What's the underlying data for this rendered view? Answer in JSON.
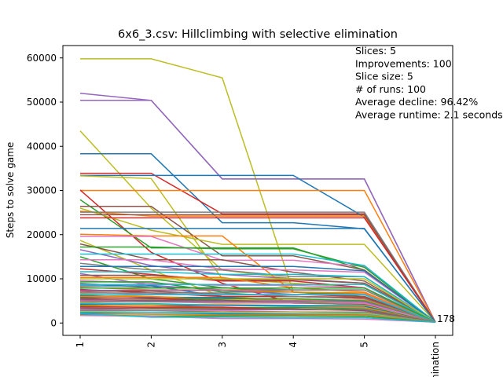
{
  "chart_data": {
    "type": "line",
    "title": "6x6_3.csv: Hillclimbing with selective elimination",
    "xlabel": "",
    "ylabel": "Steps to solve game",
    "categories": [
      "1",
      "2",
      "3",
      "4",
      "5",
      "Elimination"
    ],
    "ylim": [
      -2800,
      62800
    ],
    "yticks": [
      0,
      10000,
      20000,
      30000,
      40000,
      50000,
      60000
    ],
    "grid": false,
    "annotation_lines": [
      "Slices: 5",
      "Improvements: 100",
      "Slice size: 5",
      "# of runs: 100",
      "Average decline: 96.42%",
      "Average runtime: 2.1 seconds"
    ],
    "end_label": "178",
    "series": [
      {
        "values": [
          59800,
          59800,
          55500,
          7000,
          6000,
          178
        ],
        "color": "#bcbd22"
      },
      {
        "values": [
          52000,
          50400,
          32600,
          32600,
          32600,
          178
        ],
        "color": "#9467bd"
      },
      {
        "values": [
          50400,
          50400,
          32600,
          32600,
          32600,
          178
        ],
        "color": "#9467bd"
      },
      {
        "values": [
          43500,
          26000,
          12000,
          10000,
          9000,
          178
        ],
        "color": "#bcbd22"
      },
      {
        "values": [
          38300,
          38300,
          22700,
          22700,
          21300,
          178
        ],
        "color": "#1f77b4"
      },
      {
        "values": [
          33900,
          33900,
          24700,
          24700,
          24700,
          178
        ],
        "color": "#d62728"
      },
      {
        "values": [
          33400,
          33400,
          33400,
          33400,
          24000,
          178
        ],
        "color": "#1f77b4"
      },
      {
        "values": [
          33300,
          32700,
          10000,
          9000,
          8000,
          178
        ],
        "color": "#bcbd22"
      },
      {
        "values": [
          30000,
          30000,
          30000,
          30000,
          30000,
          178
        ],
        "color": "#ff7f0e"
      },
      {
        "values": [
          30100,
          16000,
          9000,
          4500,
          4500,
          178
        ],
        "color": "#d62728"
      },
      {
        "values": [
          27900,
          17000,
          17000,
          17000,
          12000,
          178
        ],
        "color": "#2ca02c"
      },
      {
        "values": [
          26400,
          26400,
          15200,
          15200,
          12000,
          178
        ],
        "color": "#8c564b"
      },
      {
        "values": [
          26000,
          21000,
          17800,
          17800,
          17800,
          178
        ],
        "color": "#bcbd22"
      },
      {
        "values": [
          25300,
          24200,
          24200,
          24200,
          24200,
          178
        ],
        "color": "#ff7f0e"
      },
      {
        "values": [
          25100,
          25100,
          25100,
          25100,
          25100,
          178
        ],
        "color": "#7f7f7f"
      },
      {
        "values": [
          24500,
          24500,
          24500,
          24500,
          24500,
          178
        ],
        "color": "#8c564b"
      },
      {
        "values": [
          23800,
          23800,
          23800,
          23800,
          23800,
          178
        ],
        "color": "#d62728"
      },
      {
        "values": [
          21400,
          21400,
          21400,
          21400,
          21400,
          178
        ],
        "color": "#1f77b4"
      },
      {
        "values": [
          20100,
          19700,
          19700,
          7000,
          6500,
          178
        ],
        "color": "#ff7f0e"
      },
      {
        "values": [
          19600,
          19600,
          14200,
          14200,
          12800,
          178
        ],
        "color": "#e377c2"
      },
      {
        "values": [
          18700,
          12000,
          6000,
          5000,
          4500,
          178
        ],
        "color": "#bcbd22"
      },
      {
        "values": [
          17900,
          14300,
          14300,
          11500,
          9500,
          178
        ],
        "color": "#8c564b"
      },
      {
        "values": [
          17200,
          17200,
          16800,
          16800,
          12600,
          178
        ],
        "color": "#2ca02c"
      },
      {
        "values": [
          16600,
          13000,
          11000,
          10000,
          9000,
          178
        ],
        "color": "#9467bd"
      },
      {
        "values": [
          15600,
          15600,
          15600,
          15600,
          13000,
          178
        ],
        "color": "#17becf"
      },
      {
        "values": [
          15000,
          10000,
          8000,
          7000,
          6000,
          178
        ],
        "color": "#2ca02c"
      },
      {
        "values": [
          14300,
          14300,
          12200,
          12000,
          11500,
          178
        ],
        "color": "#e377c2"
      },
      {
        "values": [
          13500,
          12000,
          12000,
          10500,
          10500,
          178
        ],
        "color": "#7f7f7f"
      },
      {
        "values": [
          12800,
          12800,
          12800,
          12800,
          11800,
          178
        ],
        "color": "#1f77b4"
      },
      {
        "values": [
          12300,
          11000,
          9500,
          9500,
          8000,
          178
        ],
        "color": "#d62728"
      },
      {
        "values": [
          11600,
          11600,
          11000,
          11000,
          10500,
          178
        ],
        "color": "#17becf"
      },
      {
        "values": [
          11200,
          8500,
          7500,
          7500,
          7500,
          178
        ],
        "color": "#9467bd"
      },
      {
        "values": [
          10800,
          10800,
          9800,
          9800,
          9000,
          178
        ],
        "color": "#8c564b"
      },
      {
        "values": [
          10300,
          10300,
          10300,
          8000,
          7000,
          178
        ],
        "color": "#ff7f0e"
      },
      {
        "values": [
          10000,
          10000,
          10000,
          10000,
          10000,
          178
        ],
        "color": "#bcbd22"
      },
      {
        "values": [
          9600,
          9000,
          8500,
          8500,
          8000,
          178
        ],
        "color": "#e377c2"
      },
      {
        "values": [
          9300,
          9300,
          7000,
          7000,
          6500,
          178
        ],
        "color": "#2ca02c"
      },
      {
        "values": [
          9000,
          8000,
          8000,
          7500,
          7500,
          178
        ],
        "color": "#7f7f7f"
      },
      {
        "values": [
          8700,
          8700,
          8700,
          8700,
          8700,
          178
        ],
        "color": "#17becf"
      },
      {
        "values": [
          8400,
          8400,
          6000,
          6000,
          5500,
          178
        ],
        "color": "#1f77b4"
      },
      {
        "values": [
          8100,
          7500,
          7500,
          7000,
          6800,
          178
        ],
        "color": "#ff7f0e"
      },
      {
        "values": [
          7900,
          7900,
          7900,
          7900,
          7900,
          178
        ],
        "color": "#2ca02c"
      },
      {
        "values": [
          7600,
          6800,
          6000,
          6000,
          5800,
          178
        ],
        "color": "#d62728"
      },
      {
        "values": [
          7400,
          7400,
          7400,
          6500,
          6500,
          178
        ],
        "color": "#9467bd"
      },
      {
        "values": [
          7200,
          7200,
          6500,
          6500,
          6000,
          178
        ],
        "color": "#8c564b"
      },
      {
        "values": [
          7000,
          6500,
          6500,
          6500,
          6500,
          178
        ],
        "color": "#e377c2"
      },
      {
        "values": [
          6800,
          6800,
          6800,
          6000,
          5500,
          178
        ],
        "color": "#7f7f7f"
      },
      {
        "values": [
          6600,
          6000,
          5500,
          5500,
          5000,
          178
        ],
        "color": "#bcbd22"
      },
      {
        "values": [
          6400,
          6400,
          6400,
          6400,
          6400,
          178
        ],
        "color": "#17becf"
      },
      {
        "values": [
          6200,
          5800,
          5800,
          5000,
          5000,
          178
        ],
        "color": "#1f77b4"
      },
      {
        "values": [
          6000,
          6000,
          5200,
          5200,
          5200,
          178
        ],
        "color": "#ff7f0e"
      },
      {
        "values": [
          5800,
          5500,
          5500,
          5500,
          5000,
          178
        ],
        "color": "#2ca02c"
      },
      {
        "values": [
          5600,
          5600,
          5000,
          4500,
          4500,
          178
        ],
        "color": "#d62728"
      },
      {
        "values": [
          5400,
          5000,
          5000,
          5000,
          4800,
          178
        ],
        "color": "#9467bd"
      },
      {
        "values": [
          5200,
          5200,
          5200,
          4500,
          4200,
          178
        ],
        "color": "#8c564b"
      },
      {
        "values": [
          5000,
          4800,
          4500,
          4500,
          4500,
          178
        ],
        "color": "#e377c2"
      },
      {
        "values": [
          4800,
          4800,
          4800,
          4800,
          4000,
          178
        ],
        "color": "#7f7f7f"
      },
      {
        "values": [
          4600,
          4200,
          4200,
          4000,
          4000,
          178
        ],
        "color": "#bcbd22"
      },
      {
        "values": [
          4400,
          4400,
          4000,
          4000,
          3800,
          178
        ],
        "color": "#17becf"
      },
      {
        "values": [
          4200,
          4000,
          4000,
          3800,
          3800,
          178
        ],
        "color": "#1f77b4"
      },
      {
        "values": [
          4000,
          4000,
          3500,
          3500,
          3500,
          178
        ],
        "color": "#ff7f0e"
      },
      {
        "values": [
          3800,
          3500,
          3500,
          3500,
          3200,
          178
        ],
        "color": "#2ca02c"
      },
      {
        "values": [
          3600,
          3600,
          3600,
          3000,
          3000,
          178
        ],
        "color": "#d62728"
      },
      {
        "values": [
          3400,
          3200,
          3000,
          3000,
          3000,
          178
        ],
        "color": "#9467bd"
      },
      {
        "values": [
          3200,
          3200,
          3200,
          3200,
          2800,
          178
        ],
        "color": "#8c564b"
      },
      {
        "values": [
          3000,
          2800,
          2800,
          2500,
          2500,
          178
        ],
        "color": "#e377c2"
      },
      {
        "values": [
          2800,
          2800,
          2500,
          2500,
          2500,
          178
        ],
        "color": "#7f7f7f"
      },
      {
        "values": [
          2600,
          2400,
          2400,
          2400,
          2200,
          178
        ],
        "color": "#bcbd22"
      },
      {
        "values": [
          2400,
          2400,
          2200,
          2000,
          2000,
          178
        ],
        "color": "#17becf"
      },
      {
        "values": [
          2200,
          2000,
          2000,
          2000,
          1800,
          178
        ],
        "color": "#1f77b4"
      },
      {
        "values": [
          2000,
          2000,
          1800,
          1800,
          1800,
          178
        ],
        "color": "#ff7f0e"
      },
      {
        "values": [
          1800,
          1600,
          1600,
          1600,
          1500,
          178
        ],
        "color": "#2ca02c"
      },
      {
        "values": [
          1700,
          1500,
          1000,
          1000,
          900,
          178
        ],
        "color": "#e377c2"
      },
      {
        "values": [
          2100,
          1300,
          1300,
          1200,
          1200,
          178
        ],
        "color": "#17becf"
      }
    ]
  }
}
